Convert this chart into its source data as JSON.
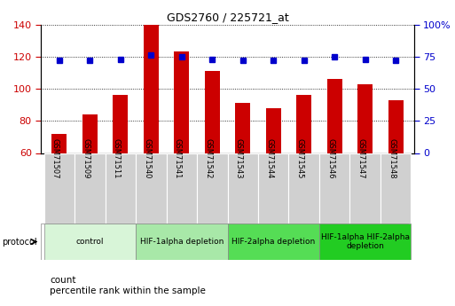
{
  "title": "GDS2760 / 225721_at",
  "samples": [
    "GSM71507",
    "GSM71509",
    "GSM71511",
    "GSM71540",
    "GSM71541",
    "GSM71542",
    "GSM71543",
    "GSM71544",
    "GSM71545",
    "GSM71546",
    "GSM71547",
    "GSM71548"
  ],
  "counts": [
    72,
    84,
    96,
    140,
    123,
    111,
    91,
    88,
    96,
    106,
    103,
    93
  ],
  "percentile_ranks": [
    72,
    72,
    73,
    76,
    75,
    73,
    72,
    72,
    72,
    75,
    73,
    72
  ],
  "ylim_left": [
    60,
    140
  ],
  "ylim_right": [
    0,
    100
  ],
  "yticks_left": [
    60,
    80,
    100,
    120,
    140
  ],
  "yticks_right": [
    0,
    25,
    50,
    75,
    100
  ],
  "bar_color": "#cc0000",
  "dot_color": "#0000cc",
  "protocol_groups": [
    {
      "label": "control",
      "start": 0,
      "end": 2,
      "color": "#d8f5d8"
    },
    {
      "label": "HIF-1alpha depletion",
      "start": 3,
      "end": 5,
      "color": "#a8e8a8"
    },
    {
      "label": "HIF-2alpha depletion",
      "start": 6,
      "end": 8,
      "color": "#55dd55"
    },
    {
      "label": "HIF-1alpha HIF-2alpha\ndepletion",
      "start": 9,
      "end": 11,
      "color": "#22cc22"
    }
  ],
  "protocol_label": "protocol",
  "legend_count_label": "count",
  "legend_pct_label": "percentile rank within the sample",
  "tick_label_color_left": "#cc0000",
  "tick_label_color_right": "#0000cc"
}
